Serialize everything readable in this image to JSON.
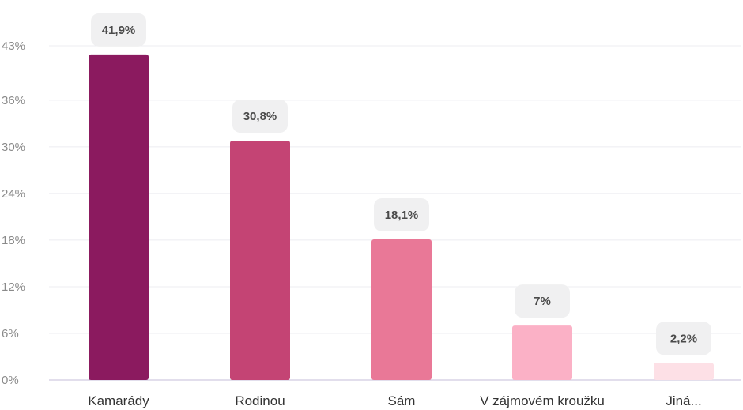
{
  "chart_data": {
    "type": "bar",
    "categories": [
      "Kamarády",
      "Rodinou",
      "Sám",
      "V zájmovém kroužku",
      "Jiná..."
    ],
    "values": [
      41.9,
      30.8,
      18.1,
      7,
      2.2
    ],
    "value_labels": [
      "41,9%",
      "30,8%",
      "18,1%",
      "7%",
      "2,2%"
    ],
    "colors": [
      "#8b1a5f",
      "#c44474",
      "#e97897",
      "#fbb1c6",
      "#fde0e6"
    ],
    "yticks": [
      0,
      6,
      12,
      18,
      24,
      30,
      36,
      43
    ],
    "ytick_labels": [
      "0%",
      "6%",
      "12%",
      "18%",
      "24%",
      "30%",
      "36%",
      "43%"
    ],
    "ylim": [
      0,
      43
    ],
    "title": "",
    "xlabel": "",
    "ylabel": "",
    "grid": true,
    "legend": "none"
  }
}
